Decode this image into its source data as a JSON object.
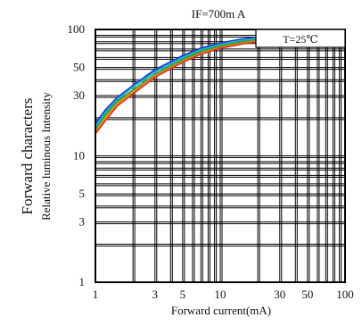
{
  "chart_data": {
    "type": "line",
    "title": "IF=700m A",
    "annotation": "T=25℃",
    "xlabel": "Forward current(mA)",
    "ylabel": "Relative luminous Intensity",
    "ylabel_outer": "Forward characters",
    "x_scale": "log",
    "y_scale": "log",
    "xlim": [
      1,
      100
    ],
    "ylim": [
      1,
      100
    ],
    "x_ticks": [
      1,
      3,
      5,
      10,
      30,
      50,
      100
    ],
    "y_ticks": [
      1,
      3,
      5,
      10,
      30,
      50,
      100
    ],
    "x_tick_labels": [
      "1",
      "3",
      "5",
      "10",
      "30",
      "50",
      "100"
    ],
    "y_tick_labels": [
      "1",
      "3",
      "5",
      "10",
      "30",
      "50",
      "100"
    ],
    "grid": true,
    "legend": "none",
    "series": [
      {
        "color": "#1e3fd8",
        "x": [
          1,
          1.2,
          1.5,
          2,
          3,
          5,
          7,
          10,
          15,
          20
        ],
        "y": [
          18,
          23,
          29,
          36,
          48,
          62,
          71,
          78,
          84,
          87
        ]
      },
      {
        "color": "#19b8c4",
        "x": [
          1,
          1.2,
          1.5,
          2,
          3,
          5,
          7,
          10,
          15,
          20
        ],
        "y": [
          17,
          22,
          28,
          35,
          46,
          60,
          69,
          76,
          82,
          85
        ]
      },
      {
        "color": "#2e9e3a",
        "x": [
          1,
          1.2,
          1.5,
          2,
          3,
          5,
          7,
          10,
          15,
          20
        ],
        "y": [
          16,
          21,
          27,
          33,
          44,
          58,
          67,
          74,
          80,
          83
        ]
      },
      {
        "color": "#e0a010",
        "x": [
          1,
          1.2,
          1.5,
          2,
          3,
          5,
          7,
          10,
          15,
          20
        ],
        "y": [
          15.5,
          20,
          26,
          32,
          43,
          56,
          65,
          72,
          78,
          81
        ]
      },
      {
        "color": "#e03a2a",
        "x": [
          1,
          1.2,
          1.5,
          2,
          3,
          5,
          7,
          10,
          15,
          20
        ],
        "y": [
          15,
          19,
          25,
          31,
          42,
          55,
          64,
          71,
          77,
          80
        ]
      }
    ]
  }
}
